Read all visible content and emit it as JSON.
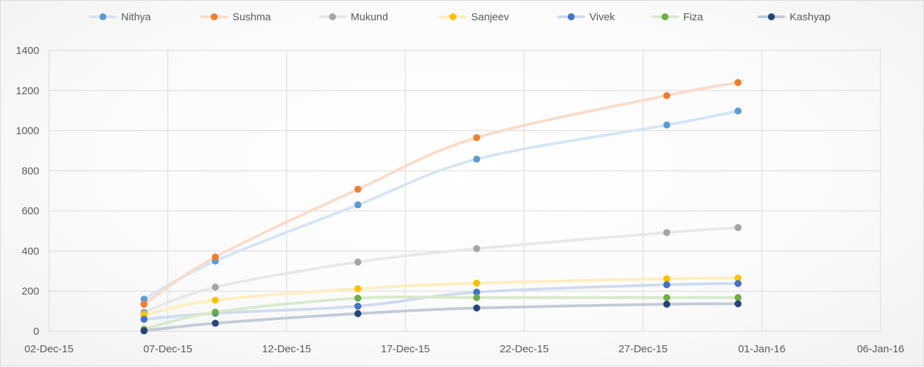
{
  "chart_data": {
    "type": "scatter",
    "subtype": "smooth-lines-with-markers",
    "title": "",
    "xlabel": "",
    "ylabel": "",
    "xlim": [
      "02-Dec-15",
      "06-Jan-16"
    ],
    "ylim": [
      0,
      1400
    ],
    "grid": true,
    "legend_position": "top",
    "x_ticks": [
      "02-Dec-15",
      "07-Dec-15",
      "12-Dec-15",
      "17-Dec-15",
      "22-Dec-15",
      "27-Dec-15",
      "01-Jan-16",
      "06-Jan-16"
    ],
    "y_ticks": [
      "0",
      "200",
      "400",
      "600",
      "800",
      "1000",
      "1200",
      "1400"
    ],
    "x": [
      "06-Dec-15",
      "09-Dec-15",
      "15-Dec-15",
      "20-Dec-15",
      "28-Dec-15",
      "31-Dec-15"
    ],
    "series": [
      {
        "name": "Nithya",
        "marker_color": "#5b9bd5",
        "line_color": "#d6e5f4",
        "values": [
          160,
          350,
          630,
          858,
          1028,
          1098
        ]
      },
      {
        "name": "Sushma",
        "marker_color": "#ed7d31",
        "line_color": "#f9dccb",
        "values": [
          135,
          370,
          708,
          965,
          1175,
          1240
        ]
      },
      {
        "name": "Mukund",
        "marker_color": "#a5a5a5",
        "line_color": "#e8e8e8",
        "values": [
          95,
          220,
          345,
          412,
          492,
          517
        ]
      },
      {
        "name": "Sanjeev",
        "marker_color": "#ffc000",
        "line_color": "#ffeebf",
        "values": [
          82,
          155,
          212,
          240,
          262,
          265
        ]
      },
      {
        "name": "Vivek",
        "marker_color": "#4472c4",
        "line_color": "#cfdbf0",
        "values": [
          60,
          90,
          125,
          195,
          232,
          238
        ]
      },
      {
        "name": "Fiza",
        "marker_color": "#70ad47",
        "line_color": "#d9e9cc",
        "values": [
          10,
          95,
          165,
          168,
          168,
          168
        ]
      },
      {
        "name": "Kashyap",
        "marker_color": "#264478",
        "line_color": "#c3cbd8",
        "values": [
          2,
          40,
          88,
          116,
          135,
          137
        ]
      }
    ]
  }
}
